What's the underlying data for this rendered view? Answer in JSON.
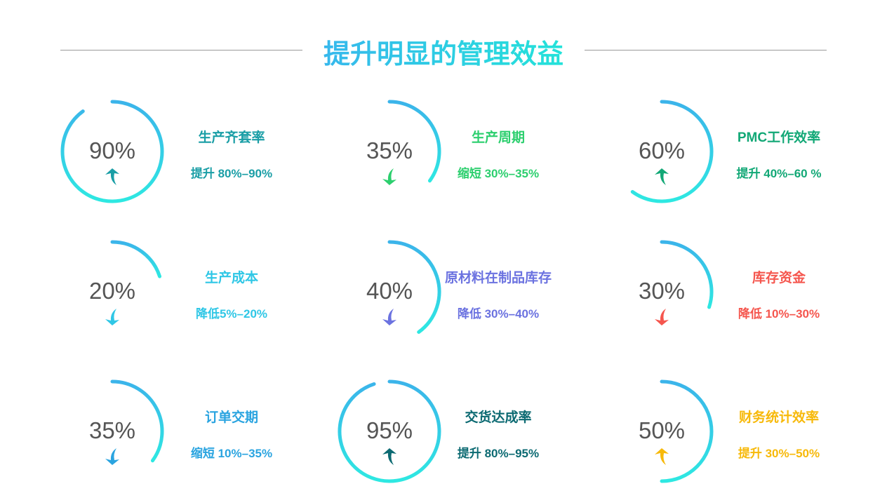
{
  "title": "提升明显的管理效益",
  "gradient": {
    "top": "#3bb4ea",
    "bottom": "#2ee8e2"
  },
  "metrics": [
    {
      "percent": 90,
      "value": "90%",
      "label": "生产齐套率",
      "detail": "提升 80%–90%",
      "direction": "up",
      "color": "#1a9ea6",
      "icon": "arrow-up-icon"
    },
    {
      "percent": 35,
      "value": "35%",
      "label": "生产周期",
      "detail": "缩短 30%–35%",
      "direction": "down",
      "color": "#2ccf6e",
      "icon": "arrow-down-icon"
    },
    {
      "percent": 60,
      "value": "60%",
      "label": "PMC工作效率",
      "detail": "提升 40%–60 %",
      "direction": "up",
      "color": "#12a876",
      "icon": "arrow-up-icon"
    },
    {
      "percent": 20,
      "value": "20%",
      "label": "生产成本",
      "detail": "降低5%–20%",
      "direction": "down",
      "color": "#2fc7e6",
      "icon": "arrow-down-icon"
    },
    {
      "percent": 40,
      "value": "40%",
      "label": "原材料在制品库存",
      "detail": "降低 30%–40%",
      "direction": "down",
      "color": "#6b72e0",
      "icon": "arrow-down-icon"
    },
    {
      "percent": 30,
      "value": "30%",
      "label": "库存资金",
      "detail": "降低 10%–30%",
      "direction": "down",
      "color": "#f5564e",
      "icon": "arrow-down-icon"
    },
    {
      "percent": 35,
      "value": "35%",
      "label": "订单交期",
      "detail": "缩短 10%–35%",
      "direction": "down",
      "color": "#2aa4e0",
      "icon": "arrow-down-icon"
    },
    {
      "percent": 95,
      "value": "95%",
      "label": "交货达成率",
      "detail": "提升 80%–95%",
      "direction": "up",
      "color": "#0c6a72",
      "icon": "arrow-up-icon"
    },
    {
      "percent": 50,
      "value": "50%",
      "label": "财务统计效率",
      "detail": "提升 30%–50%",
      "direction": "up",
      "color": "#f7b90a",
      "icon": "arrow-up-icon"
    }
  ]
}
